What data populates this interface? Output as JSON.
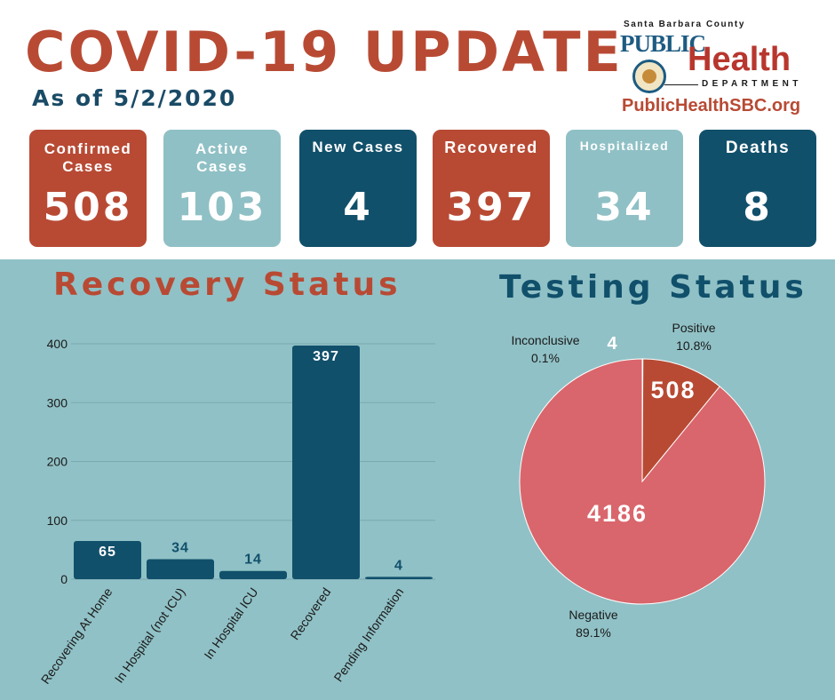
{
  "header": {
    "title": "COVID-19 UPDATE",
    "as_of": "As of 5/2/2020"
  },
  "logo": {
    "county": "Santa Barbara County",
    "public": "PUBLIC",
    "health": "Health",
    "department": "DEPARTMENT",
    "url": "PublicHealthSBC.org"
  },
  "cards": [
    {
      "label_lines": [
        "Confirmed",
        "Cases"
      ],
      "value": "508",
      "color": "#b84a34"
    },
    {
      "label_lines": [
        "Active",
        "Cases"
      ],
      "value": "103",
      "color": "#8fc0c5"
    },
    {
      "label_lines": [
        "New Cases"
      ],
      "value": "4",
      "color": "#11506b"
    },
    {
      "label_lines": [
        "Recovered"
      ],
      "value": "397",
      "color": "#b84a34"
    },
    {
      "label_lines": [
        "Hospitalized"
      ],
      "value": "34",
      "color": "#8fc0c5"
    },
    {
      "label_lines": [
        "Deaths"
      ],
      "value": "8",
      "color": "#11506b"
    }
  ],
  "colors": {
    "rust": "#b84a34",
    "navy": "#11506b",
    "teal_bg": "#90c1c6",
    "negative_pink": "#d9666c",
    "positive_red": "#b84a34"
  },
  "chart_data": [
    {
      "type": "bar",
      "title": "Recovery Status",
      "categories": [
        "Recovering At Home",
        "In Hospital (not ICU)",
        "In Hospital ICU",
        "Recovered",
        "Pending Information"
      ],
      "values": [
        65,
        34,
        14,
        397,
        4
      ],
      "data_labels": [
        "65",
        "34",
        "14",
        "397",
        "4"
      ],
      "yticks": [
        "0",
        "100",
        "200",
        "300",
        "400"
      ],
      "ylim": [
        0,
        400
      ],
      "grid": true,
      "bar_color": "#11506b"
    },
    {
      "type": "pie",
      "title": "Testing Status",
      "slices": [
        {
          "label": "Inconclusive",
          "value": 4,
          "percent": "0.1%",
          "color": "#f2dcd8"
        },
        {
          "label": "Positive",
          "value": 508,
          "percent": "10.8%",
          "color": "#b84a34"
        },
        {
          "label": "Negative",
          "value": 4186,
          "percent": "89.1%",
          "color": "#d9666c"
        }
      ]
    }
  ]
}
